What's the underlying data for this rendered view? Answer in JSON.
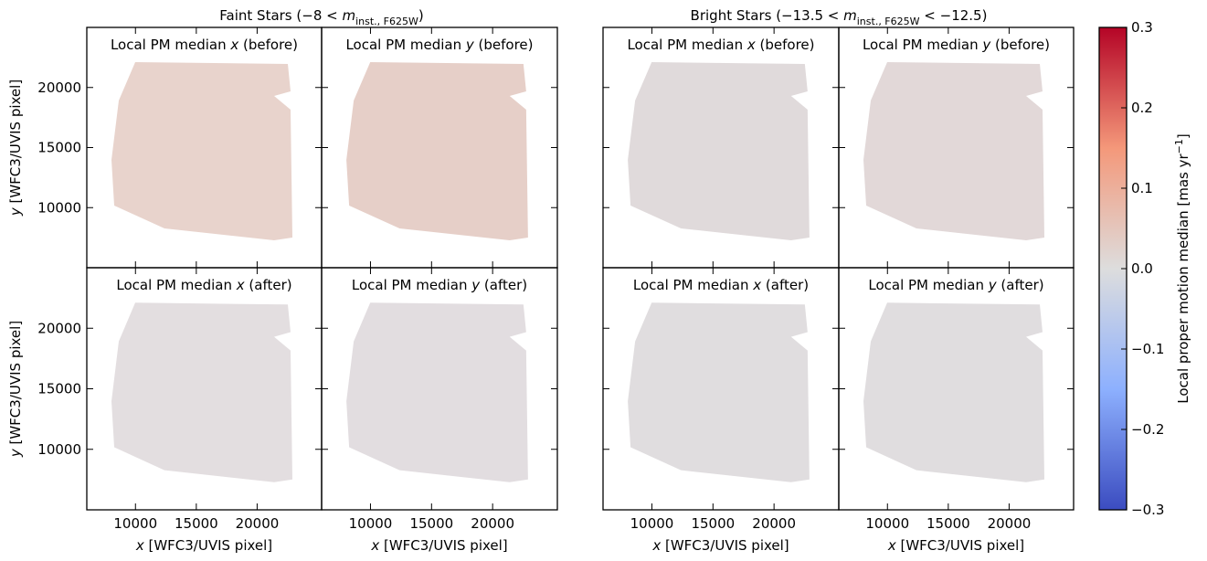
{
  "chart_data": {
    "type": "heatmap-grid",
    "group_titles": [
      [
        {
          "text": "Faint Stars (−8 < "
        },
        {
          "text": "m",
          "style": "italic"
        },
        {
          "text": "inst., F625W",
          "style": "sub"
        },
        {
          "text": ")"
        }
      ],
      [
        {
          "text": "Bright Stars (−13.5 < "
        },
        {
          "text": "m",
          "style": "italic"
        },
        {
          "text": "inst., F625W",
          "style": "sub"
        },
        {
          "text": " < −12.5)"
        }
      ]
    ],
    "panels": [
      {
        "title": [
          {
            "text": "Local PM median "
          },
          {
            "text": "x",
            "style": "italic"
          },
          {
            "text": " (before)"
          }
        ]
      },
      {
        "title": [
          {
            "text": "Local PM median "
          },
          {
            "text": "y",
            "style": "italic"
          },
          {
            "text": " (before)"
          }
        ]
      },
      {
        "title": [
          {
            "text": "Local PM median "
          },
          {
            "text": "x",
            "style": "italic"
          },
          {
            "text": " (before)"
          }
        ]
      },
      {
        "title": [
          {
            "text": "Local PM median "
          },
          {
            "text": "y",
            "style": "italic"
          },
          {
            "text": " (before)"
          }
        ]
      },
      {
        "title": [
          {
            "text": "Local PM median "
          },
          {
            "text": "x",
            "style": "italic"
          },
          {
            "text": " (after)"
          }
        ]
      },
      {
        "title": [
          {
            "text": "Local PM median "
          },
          {
            "text": "y",
            "style": "italic"
          },
          {
            "text": " (after)"
          }
        ]
      },
      {
        "title": [
          {
            "text": "Local PM median "
          },
          {
            "text": "x",
            "style": "italic"
          },
          {
            "text": " (after)"
          }
        ]
      },
      {
        "title": [
          {
            "text": "Local PM median "
          },
          {
            "text": "y",
            "style": "italic"
          },
          {
            "text": " (after)"
          }
        ]
      }
    ],
    "xlabel": [
      {
        "text": "x",
        "style": "italic"
      },
      {
        "text": " [WFC3/UVIS pixel]"
      }
    ],
    "ylabel": [
      {
        "text": "y",
        "style": "italic"
      },
      {
        "text": " [WFC3/UVIS pixel]"
      }
    ],
    "xlim": [
      6000,
      25300
    ],
    "ylim": [
      5000,
      25000
    ],
    "xticks": [
      10000,
      15000,
      20000
    ],
    "yticks": [
      10000,
      15000,
      20000
    ],
    "colorbar": {
      "colormap": "coolwarm",
      "clim": [
        -0.3,
        0.3
      ],
      "ticks": [
        {
          "value": -0.3,
          "label": "−0.3"
        },
        {
          "value": -0.2,
          "label": "−0.2"
        },
        {
          "value": -0.1,
          "label": "−0.1"
        },
        {
          "value": 0,
          "label": "0.0"
        },
        0.1,
        0.2,
        0.3
      ],
      "label": [
        {
          "text": "Local proper motion median [mas yr"
        },
        {
          "text": "−1",
          "style": "sup"
        },
        {
          "text": "]"
        }
      ]
    }
  }
}
